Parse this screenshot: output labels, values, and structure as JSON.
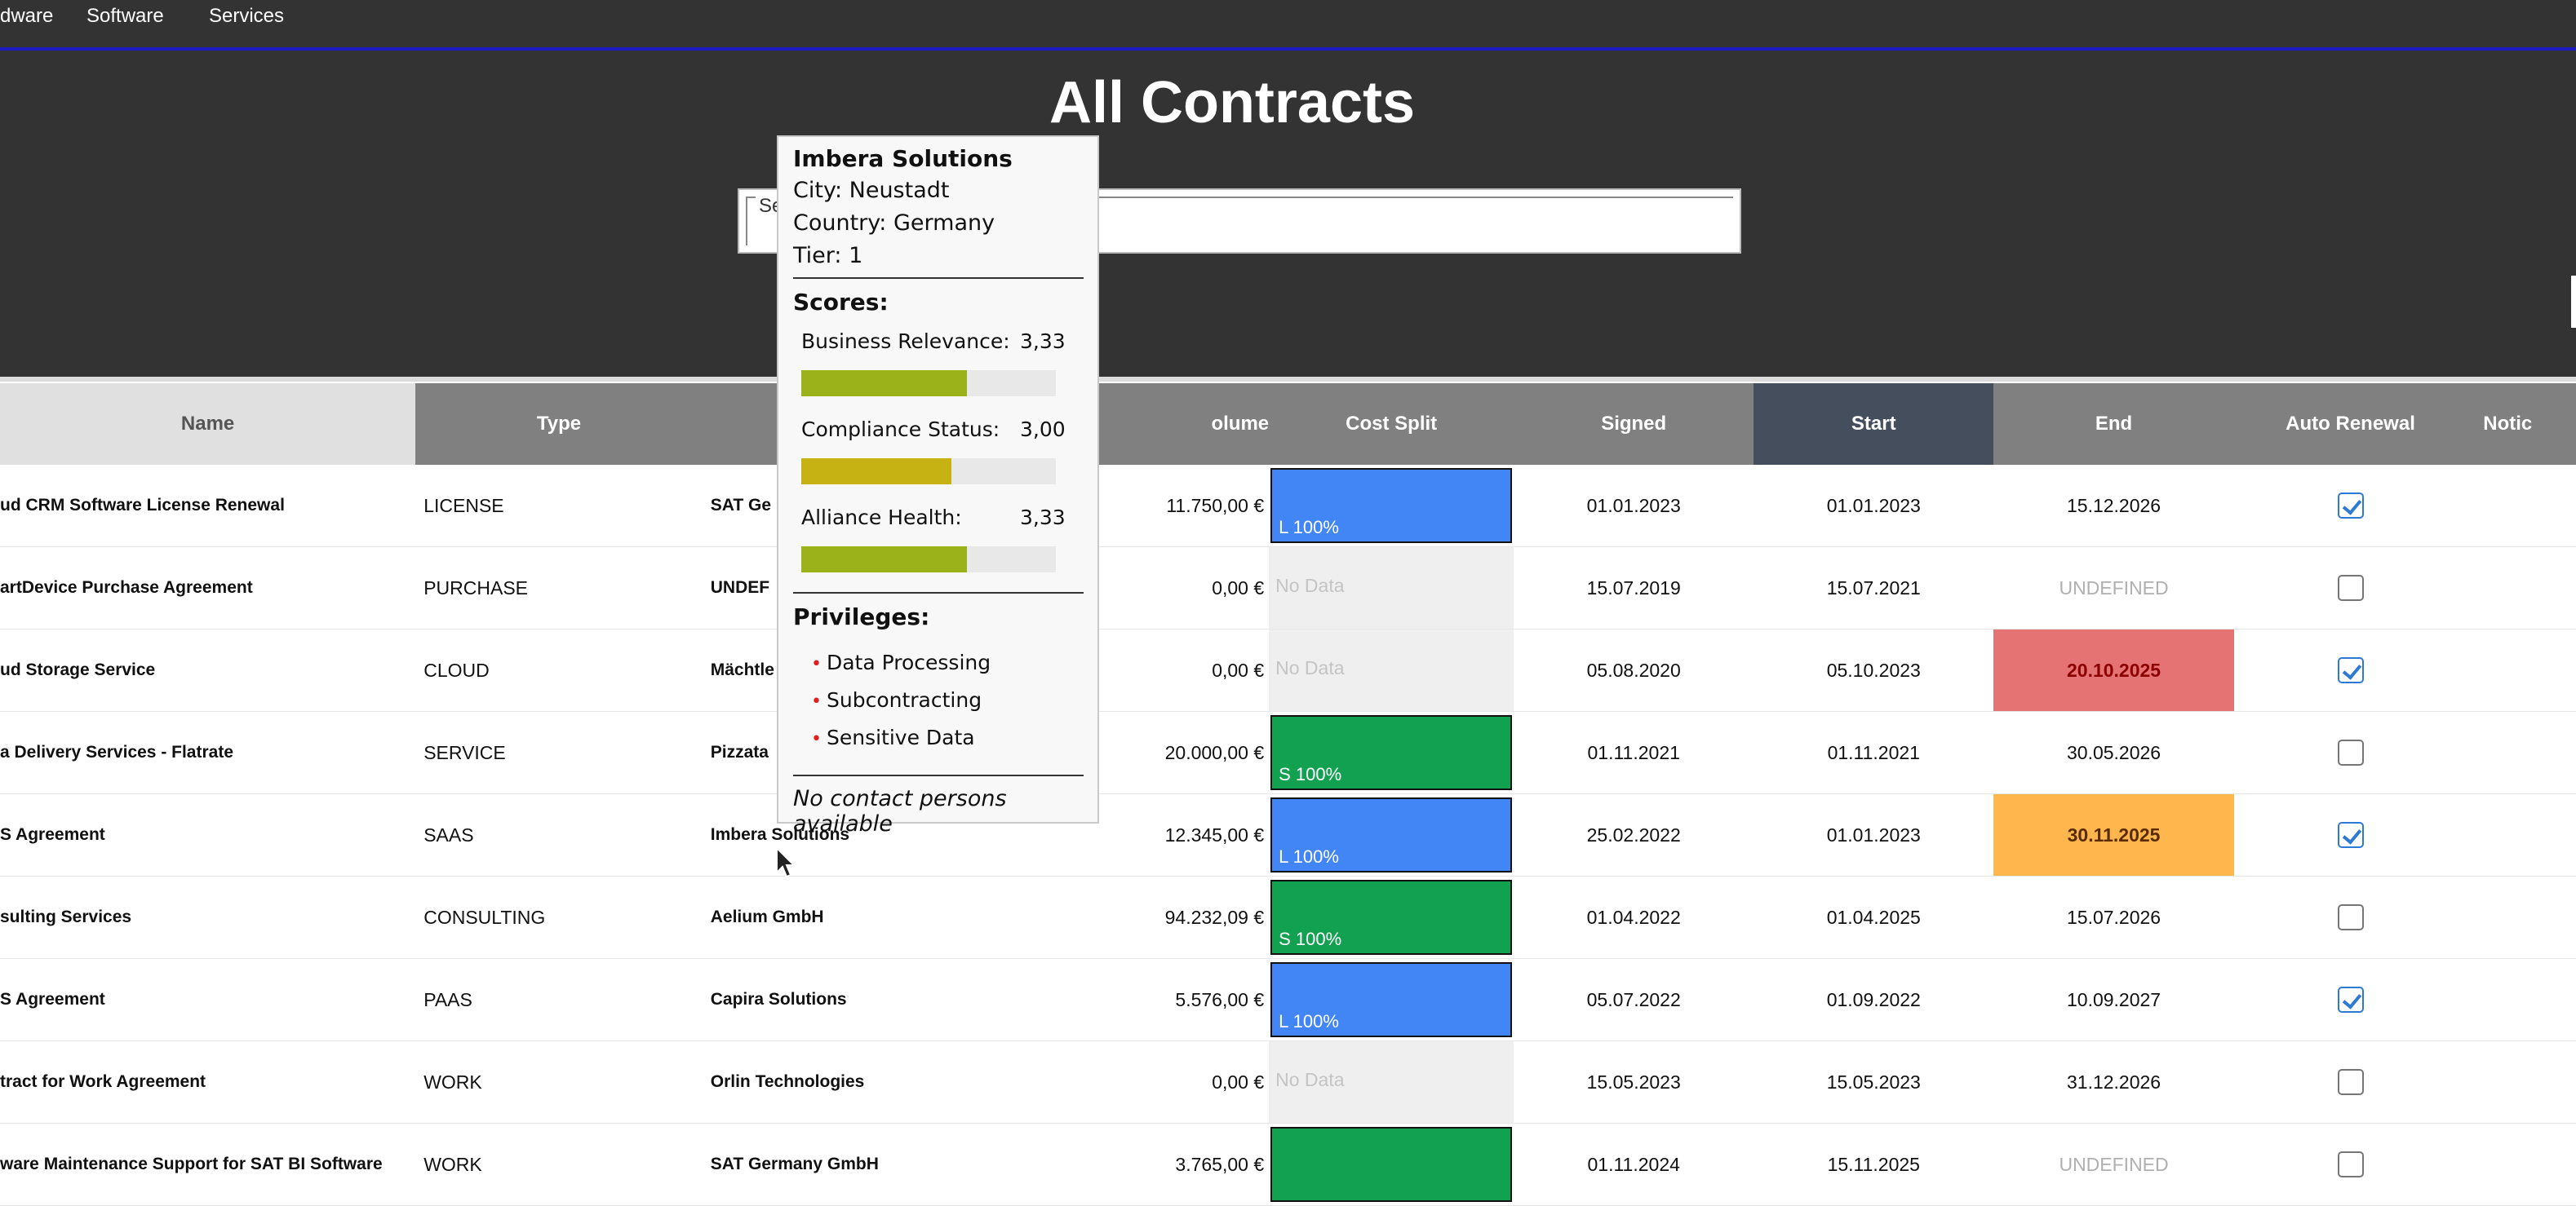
{
  "nav": {
    "items": [
      "dware",
      "Software",
      "Services"
    ]
  },
  "page_title": "All Contracts",
  "search": {
    "placeholder": "Se"
  },
  "table": {
    "columns": [
      "Name",
      "Type",
      "",
      "olume",
      "Cost Split",
      "Signed",
      "Start",
      "End",
      "Auto Renewal",
      "Notic"
    ],
    "rows": [
      {
        "name": "ud CRM Software License Renewal",
        "type": "LICENSE",
        "partner": "SAT Ge",
        "volume": "11.750,00 €",
        "cost": {
          "label": "L 100%",
          "color": "#4285f4"
        },
        "signed": "01.01.2023",
        "start": "01.01.2023",
        "end": "15.12.2026",
        "end_status": "normal",
        "auto_renewal": true
      },
      {
        "name": "artDevice Purchase Agreement",
        "type": "PURCHASE",
        "partner": "UNDEF",
        "volume": "0,00 €",
        "cost": {
          "label": "No Data",
          "color": ""
        },
        "signed": "15.07.2019",
        "start": "15.07.2021",
        "end": "UNDEFINED",
        "end_status": "undefined",
        "auto_renewal": false
      },
      {
        "name": "ud Storage Service",
        "type": "CLOUD",
        "partner": "Mächtle",
        "volume": "0,00 €",
        "cost": {
          "label": "No Data",
          "color": ""
        },
        "signed": "05.08.2020",
        "start": "05.10.2023",
        "end": "20.10.2025",
        "end_status": "expired",
        "auto_renewal": true
      },
      {
        "name": "a Delivery Services - Flatrate",
        "type": "SERVICE",
        "partner": "Pizzata",
        "volume": "20.000,00 €",
        "cost": {
          "label": "S 100%",
          "color": "#12a150"
        },
        "signed": "01.11.2021",
        "start": "01.11.2021",
        "end": "30.05.2026",
        "end_status": "normal",
        "auto_renewal": false
      },
      {
        "name": "S Agreement",
        "type": "SAAS",
        "partner": "Imbera Solutions",
        "volume": "12.345,00 €",
        "cost": {
          "label": "L 100%",
          "color": "#4285f4"
        },
        "signed": "25.02.2022",
        "start": "01.01.2023",
        "end": "30.11.2025",
        "end_status": "warning",
        "auto_renewal": true
      },
      {
        "name": "sulting Services",
        "type": "CONSULTING",
        "partner": "Aelium GmbH",
        "volume": "94.232,09 €",
        "cost": {
          "label": "S 100%",
          "color": "#12a150"
        },
        "signed": "01.04.2022",
        "start": "01.04.2025",
        "end": "15.07.2026",
        "end_status": "normal",
        "auto_renewal": false
      },
      {
        "name": "S Agreement",
        "type": "PAAS",
        "partner": "Capira Solutions",
        "volume": "5.576,00 €",
        "cost": {
          "label": "L 100%",
          "color": "#4285f4"
        },
        "signed": "05.07.2022",
        "start": "01.09.2022",
        "end": "10.09.2027",
        "end_status": "normal",
        "auto_renewal": true
      },
      {
        "name": "tract for Work Agreement",
        "type": "WORK",
        "partner": "Orlin Technologies",
        "volume": "0,00 €",
        "cost": {
          "label": "No Data",
          "color": ""
        },
        "signed": "15.05.2023",
        "start": "15.05.2023",
        "end": "31.12.2026",
        "end_status": "normal",
        "auto_renewal": false
      },
      {
        "name": "ware Maintenance Support for SAT BI Software",
        "type": "WORK",
        "partner": "SAT Germany GmbH",
        "volume": "3.765,00 €",
        "cost": {
          "label": "",
          "color": "#12a150"
        },
        "signed": "01.11.2024",
        "start": "15.11.2025",
        "end": "UNDEFINED",
        "end_status": "undefined",
        "auto_renewal": false
      }
    ]
  },
  "tooltip": {
    "title": "Imbera Solutions",
    "city": "City: Neustadt",
    "country": "Country: Germany",
    "tier": "Tier: 1",
    "scores_heading": "Scores:",
    "scores": [
      {
        "label": "Business Relevance:",
        "value": "3,33",
        "fraction": 0.65,
        "color": "#9bb21a"
      },
      {
        "label": "Compliance Status:",
        "value": "3,00",
        "fraction": 0.59,
        "color": "#c6b212"
      },
      {
        "label": "Alliance Health:",
        "value": "3,33",
        "fraction": 0.65,
        "color": "#9bb21a"
      }
    ],
    "privileges_heading": "Privileges:",
    "privileges": [
      "Data Processing",
      "Subcontracting",
      "Sensitive Data"
    ],
    "footer": "No contact persons available"
  },
  "colors": {
    "nav_bg": "#333333",
    "nav_underline": "#1c1cc4",
    "end_expired": "#e57373",
    "end_warning": "#ffb74d",
    "checkbox_checked": "#2d7ad6"
  }
}
